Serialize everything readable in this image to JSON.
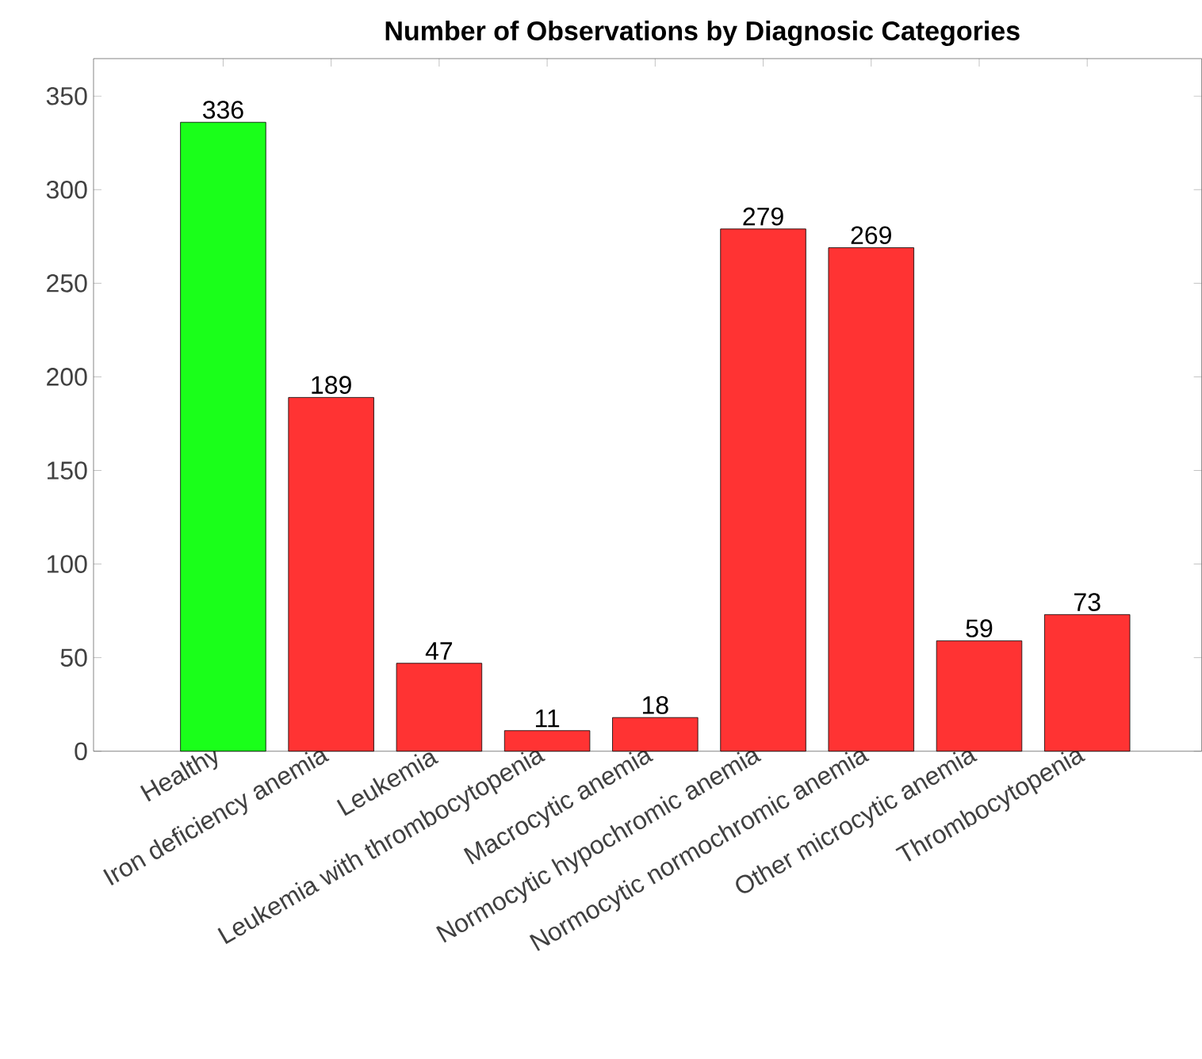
{
  "chart_data": {
    "type": "bar",
    "title": "Number of Observations by Diagnosic Categories",
    "categories": [
      "Healthy",
      "Iron deficiency anemia",
      "Leukemia",
      "Leukemia with thrombocytopenia",
      "Macrocytic anemia",
      "Normocytic hypochromic anemia",
      "Normocytic normochromic anemia",
      "Other microcytic anemia",
      "Thrombocytopenia"
    ],
    "values": [
      336,
      189,
      47,
      11,
      18,
      279,
      269,
      59,
      73
    ],
    "colors": [
      "#1aff1a",
      "#ff3333",
      "#ff3333",
      "#ff3333",
      "#ff3333",
      "#ff3333",
      "#ff3333",
      "#ff3333",
      "#ff3333"
    ],
    "ylim": [
      0,
      370
    ],
    "yticks": [
      0,
      50,
      100,
      150,
      200,
      250,
      300,
      350
    ],
    "grid": false,
    "data_labels": true
  }
}
